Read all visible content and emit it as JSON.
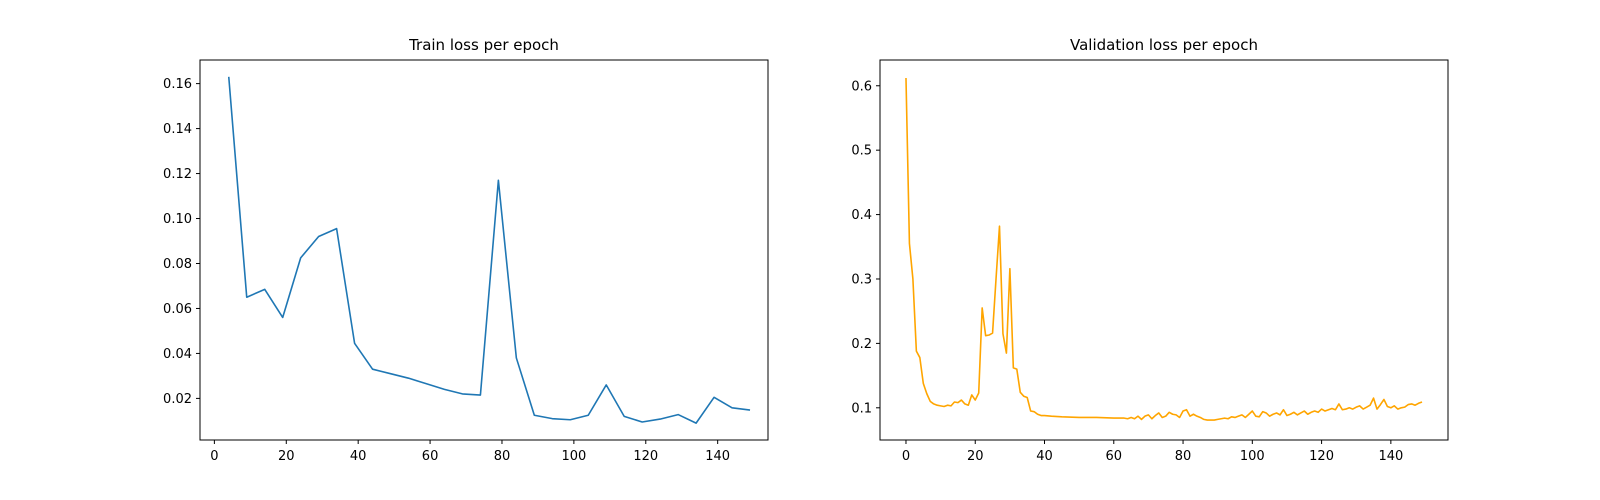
{
  "chart_data": [
    {
      "type": "line",
      "title": "Train loss per epoch",
      "xlabel": "",
      "ylabel": "",
      "xlim": [
        -4,
        154
      ],
      "ylim": [
        0.0015,
        0.1705
      ],
      "xticks": [
        0,
        20,
        40,
        60,
        80,
        100,
        120,
        140
      ],
      "yticks": [
        0.02,
        0.04,
        0.06,
        0.08,
        0.1,
        0.12,
        0.14,
        0.16
      ],
      "ytick_labels": [
        "0.02",
        "0.04",
        "0.06",
        "0.08",
        "0.10",
        "0.12",
        "0.14",
        "0.16"
      ],
      "grid": false,
      "series": [
        {
          "color": "#1f77b4",
          "x": [
            4,
            9,
            14,
            19,
            24,
            29,
            34,
            39,
            44,
            49,
            54,
            59,
            64,
            69,
            74,
            79,
            84,
            89,
            94,
            99,
            104,
            109,
            114,
            119,
            124,
            129,
            134,
            139,
            144,
            149
          ],
          "y": [
            0.163,
            0.065,
            0.0685,
            0.056,
            0.0825,
            0.092,
            0.0955,
            0.0445,
            0.033,
            0.031,
            0.029,
            0.0265,
            0.024,
            0.022,
            0.0215,
            0.117,
            0.038,
            0.0125,
            0.011,
            0.0105,
            0.0125,
            0.026,
            0.012,
            0.0095,
            0.0108,
            0.0128,
            0.009,
            0.0205,
            0.0158,
            0.0148
          ]
        }
      ]
    },
    {
      "type": "line",
      "title": "Validation loss per epoch",
      "xlabel": "",
      "ylabel": "",
      "xlim": [
        -7.5,
        156.5
      ],
      "ylim": [
        0.05,
        0.64
      ],
      "xticks": [
        0,
        20,
        40,
        60,
        80,
        100,
        120,
        140
      ],
      "yticks": [
        0.1,
        0.2,
        0.3,
        0.4,
        0.5,
        0.6
      ],
      "ytick_labels": [
        "0.1",
        "0.2",
        "0.3",
        "0.4",
        "0.5",
        "0.6"
      ],
      "grid": false,
      "series": [
        {
          "color": "#ffa500",
          "x": [
            0,
            1,
            2,
            3,
            4,
            5,
            6,
            7,
            8,
            9,
            10,
            11,
            12,
            13,
            14,
            15,
            16,
            17,
            18,
            19,
            20,
            21,
            22,
            23,
            24,
            25,
            26,
            27,
            28,
            29,
            30,
            31,
            32,
            33,
            34,
            35,
            36,
            37,
            38,
            39,
            40,
            42,
            45,
            50,
            55,
            60,
            63,
            64,
            65,
            66,
            67,
            68,
            69,
            70,
            71,
            72,
            73,
            74,
            75,
            76,
            77,
            78,
            79,
            80,
            81,
            82,
            83,
            84,
            85,
            86,
            87,
            88,
            89,
            90,
            91,
            92,
            93,
            94,
            95,
            96,
            97,
            98,
            99,
            100,
            101,
            102,
            103,
            104,
            105,
            106,
            107,
            108,
            109,
            110,
            111,
            112,
            113,
            114,
            115,
            116,
            117,
            118,
            119,
            120,
            121,
            122,
            123,
            124,
            125,
            126,
            127,
            128,
            129,
            130,
            131,
            132,
            133,
            134,
            135,
            136,
            137,
            138,
            139,
            140,
            141,
            142,
            143,
            144,
            145,
            146,
            147,
            148,
            149
          ],
          "y": [
            0.612,
            0.355,
            0.3,
            0.188,
            0.178,
            0.138,
            0.122,
            0.11,
            0.106,
            0.104,
            0.103,
            0.102,
            0.104,
            0.103,
            0.109,
            0.108,
            0.112,
            0.106,
            0.104,
            0.12,
            0.112,
            0.123,
            0.255,
            0.212,
            0.213,
            0.216,
            0.3,
            0.382,
            0.215,
            0.185,
            0.316,
            0.162,
            0.16,
            0.124,
            0.118,
            0.116,
            0.095,
            0.094,
            0.09,
            0.088,
            0.088,
            0.087,
            0.086,
            0.085,
            0.085,
            0.084,
            0.084,
            0.083,
            0.085,
            0.083,
            0.087,
            0.082,
            0.087,
            0.089,
            0.083,
            0.088,
            0.092,
            0.085,
            0.087,
            0.093,
            0.09,
            0.089,
            0.085,
            0.095,
            0.097,
            0.087,
            0.09,
            0.087,
            0.085,
            0.082,
            0.081,
            0.081,
            0.081,
            0.082,
            0.083,
            0.084,
            0.083,
            0.086,
            0.085,
            0.087,
            0.089,
            0.085,
            0.09,
            0.095,
            0.087,
            0.086,
            0.094,
            0.092,
            0.087,
            0.09,
            0.092,
            0.089,
            0.097,
            0.088,
            0.09,
            0.093,
            0.089,
            0.092,
            0.095,
            0.09,
            0.093,
            0.095,
            0.093,
            0.098,
            0.095,
            0.097,
            0.099,
            0.097,
            0.106,
            0.097,
            0.098,
            0.1,
            0.098,
            0.101,
            0.103,
            0.098,
            0.101,
            0.104,
            0.115,
            0.098,
            0.105,
            0.113,
            0.102,
            0.1,
            0.103,
            0.098,
            0.1,
            0.101,
            0.105,
            0.106,
            0.104,
            0.107,
            0.109
          ]
        }
      ]
    }
  ]
}
